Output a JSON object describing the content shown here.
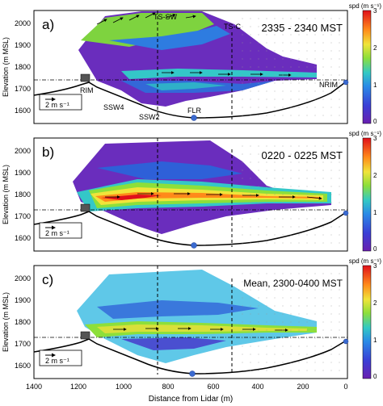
{
  "figure": {
    "shared_ylabel": "Elevation (m MSL)",
    "shared_xlabel": "Distance from Lidar (m)",
    "x_ticks": [
      "1400",
      "1200",
      "1000",
      "800",
      "600",
      "400",
      "200",
      "0"
    ],
    "y_ticks": [
      "1600",
      "1700",
      "1800",
      "1900",
      "2000"
    ],
    "colorbar_title": "spd (m s⁻¹)",
    "colorbar_ticks": [
      "0",
      "1",
      "2",
      "3"
    ],
    "scale_label": "2 m s⁻¹",
    "colors": {
      "low": "#7b2fbf",
      "mid_low": "#2d6fe0",
      "mid": "#2fc4c9",
      "mid_high": "#9be03a",
      "high": "#f2e23a",
      "very_high": "#ff6a1a",
      "max": "#e0101a",
      "terrain": "#000000",
      "marker": "#3a6ad0"
    }
  },
  "panels": [
    {
      "label": "a)",
      "time": "2335 - 2340 MST",
      "annotations": {
        "ts_sw": "TS-SW",
        "ts_c": "TS-C",
        "rim": "RIM",
        "nrim": "NRIM",
        "ssw4": "SSW4",
        "ssw2": "SSW2",
        "flr": "FLR"
      }
    },
    {
      "label": "b)",
      "time": "0220 - 0225 MST"
    },
    {
      "label": "c)",
      "time": "Mean, 2300-0400 MST"
    }
  ],
  "chart_data": [
    {
      "type": "heatmap",
      "title": "2335 - 2340 MST",
      "xlabel": "Distance from Lidar (m)",
      "ylabel": "Elevation (m MSL)",
      "colorbar_label": "spd (m s⁻¹)",
      "xlim": [
        1400,
        0
      ],
      "ylim": [
        1550,
        2050
      ],
      "clim": [
        0,
        3
      ],
      "reference_lines": {
        "ts_sw_x": 850,
        "ts_c_x": 520,
        "rim_level_elevation": 1735
      },
      "speed_bands": [
        {
          "elevation": 1975,
          "x_from": 1030,
          "x_to": 750,
          "speed": 1.5
        },
        {
          "elevation": 1880,
          "x_from": 1060,
          "x_to": 600,
          "speed": 0.6
        },
        {
          "elevation": 1775,
          "x_from": 930,
          "x_to": 280,
          "speed": 1.2
        },
        {
          "elevation": 1745,
          "x_from": 1000,
          "x_to": 300,
          "speed": 0.9
        }
      ]
    },
    {
      "type": "heatmap",
      "title": "0220 - 0225 MST",
      "xlabel": "Distance from Lidar (m)",
      "ylabel": "Elevation (m MSL)",
      "colorbar_label": "spd (m s⁻¹)",
      "xlim": [
        1400,
        0
      ],
      "ylim": [
        1550,
        2050
      ],
      "clim": [
        0,
        3
      ],
      "reference_lines": {
        "ts_sw_x": 850,
        "ts_c_x": 520,
        "rim_level_elevation": 1735
      },
      "speed_bands": [
        {
          "elevation": 1980,
          "x_from": 1000,
          "x_to": 720,
          "speed": 0.3
        },
        {
          "elevation": 1860,
          "x_from": 1080,
          "x_to": 550,
          "speed": 0.5
        },
        {
          "elevation": 1780,
          "x_from": 1180,
          "x_to": 120,
          "speed": 2.6
        },
        {
          "elevation": 1730,
          "x_from": 1100,
          "x_to": 500,
          "speed": 1.2
        }
      ]
    },
    {
      "type": "heatmap",
      "title": "Mean, 2300-0400 MST",
      "xlabel": "Distance from Lidar (m)",
      "ylabel": "Elevation (m MSL)",
      "colorbar_label": "spd (m s⁻¹)",
      "xlim": [
        1400,
        0
      ],
      "ylim": [
        1550,
        2050
      ],
      "clim": [
        0,
        3
      ],
      "reference_lines": {
        "ts_sw_x": 850,
        "ts_c_x": 520,
        "rim_level_elevation": 1735
      },
      "speed_bands": [
        {
          "elevation": 1950,
          "x_from": 1000,
          "x_to": 750,
          "speed": 0.9
        },
        {
          "elevation": 1840,
          "x_from": 1080,
          "x_to": 560,
          "speed": 0.6
        },
        {
          "elevation": 1775,
          "x_from": 1020,
          "x_to": 200,
          "speed": 1.9
        },
        {
          "elevation": 1725,
          "x_from": 1050,
          "x_to": 500,
          "speed": 0.8
        }
      ]
    }
  ]
}
